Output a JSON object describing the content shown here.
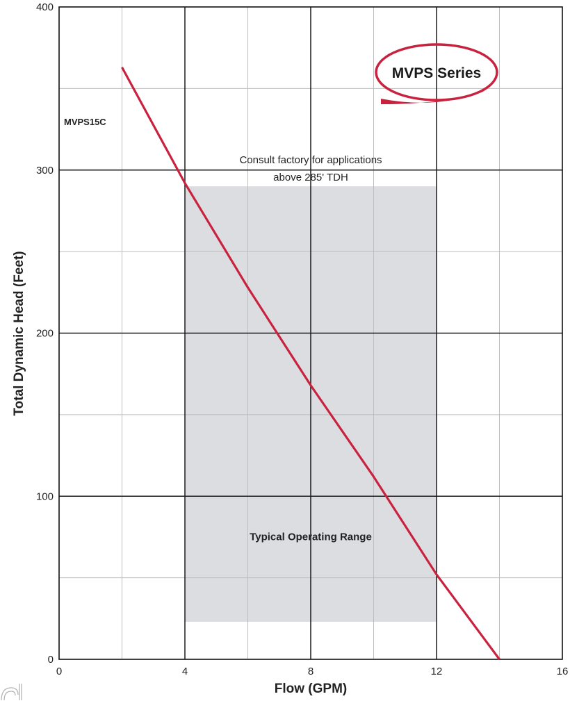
{
  "chart_data": {
    "type": "line",
    "xlabel": "Flow (GPM)",
    "ylabel": "Total Dynamic Head (Feet)",
    "xlim": [
      0,
      16
    ],
    "ylim": [
      0,
      400
    ],
    "x_ticks": [
      "0",
      "4",
      "8",
      "12",
      "16"
    ],
    "y_ticks": [
      "0",
      "100",
      "200",
      "300",
      "400"
    ],
    "grid": true,
    "series": [
      {
        "name": "MVPS15C",
        "color": "#c8223f",
        "x": [
          2,
          4,
          6,
          8,
          10,
          12,
          14
        ],
        "y": [
          363,
          292,
          228,
          168,
          112,
          52,
          0
        ]
      }
    ],
    "shaded_region": {
      "label": "Typical Operating Range",
      "x": [
        4,
        12
      ],
      "y": [
        23,
        290
      ],
      "color": "#dcdde0"
    },
    "annotations": [
      {
        "text_line1": "Consult factory for applications",
        "text_line2": "above 285' TDH"
      }
    ],
    "badge": {
      "text": "MVPS Series",
      "color": "#c8223f"
    }
  }
}
